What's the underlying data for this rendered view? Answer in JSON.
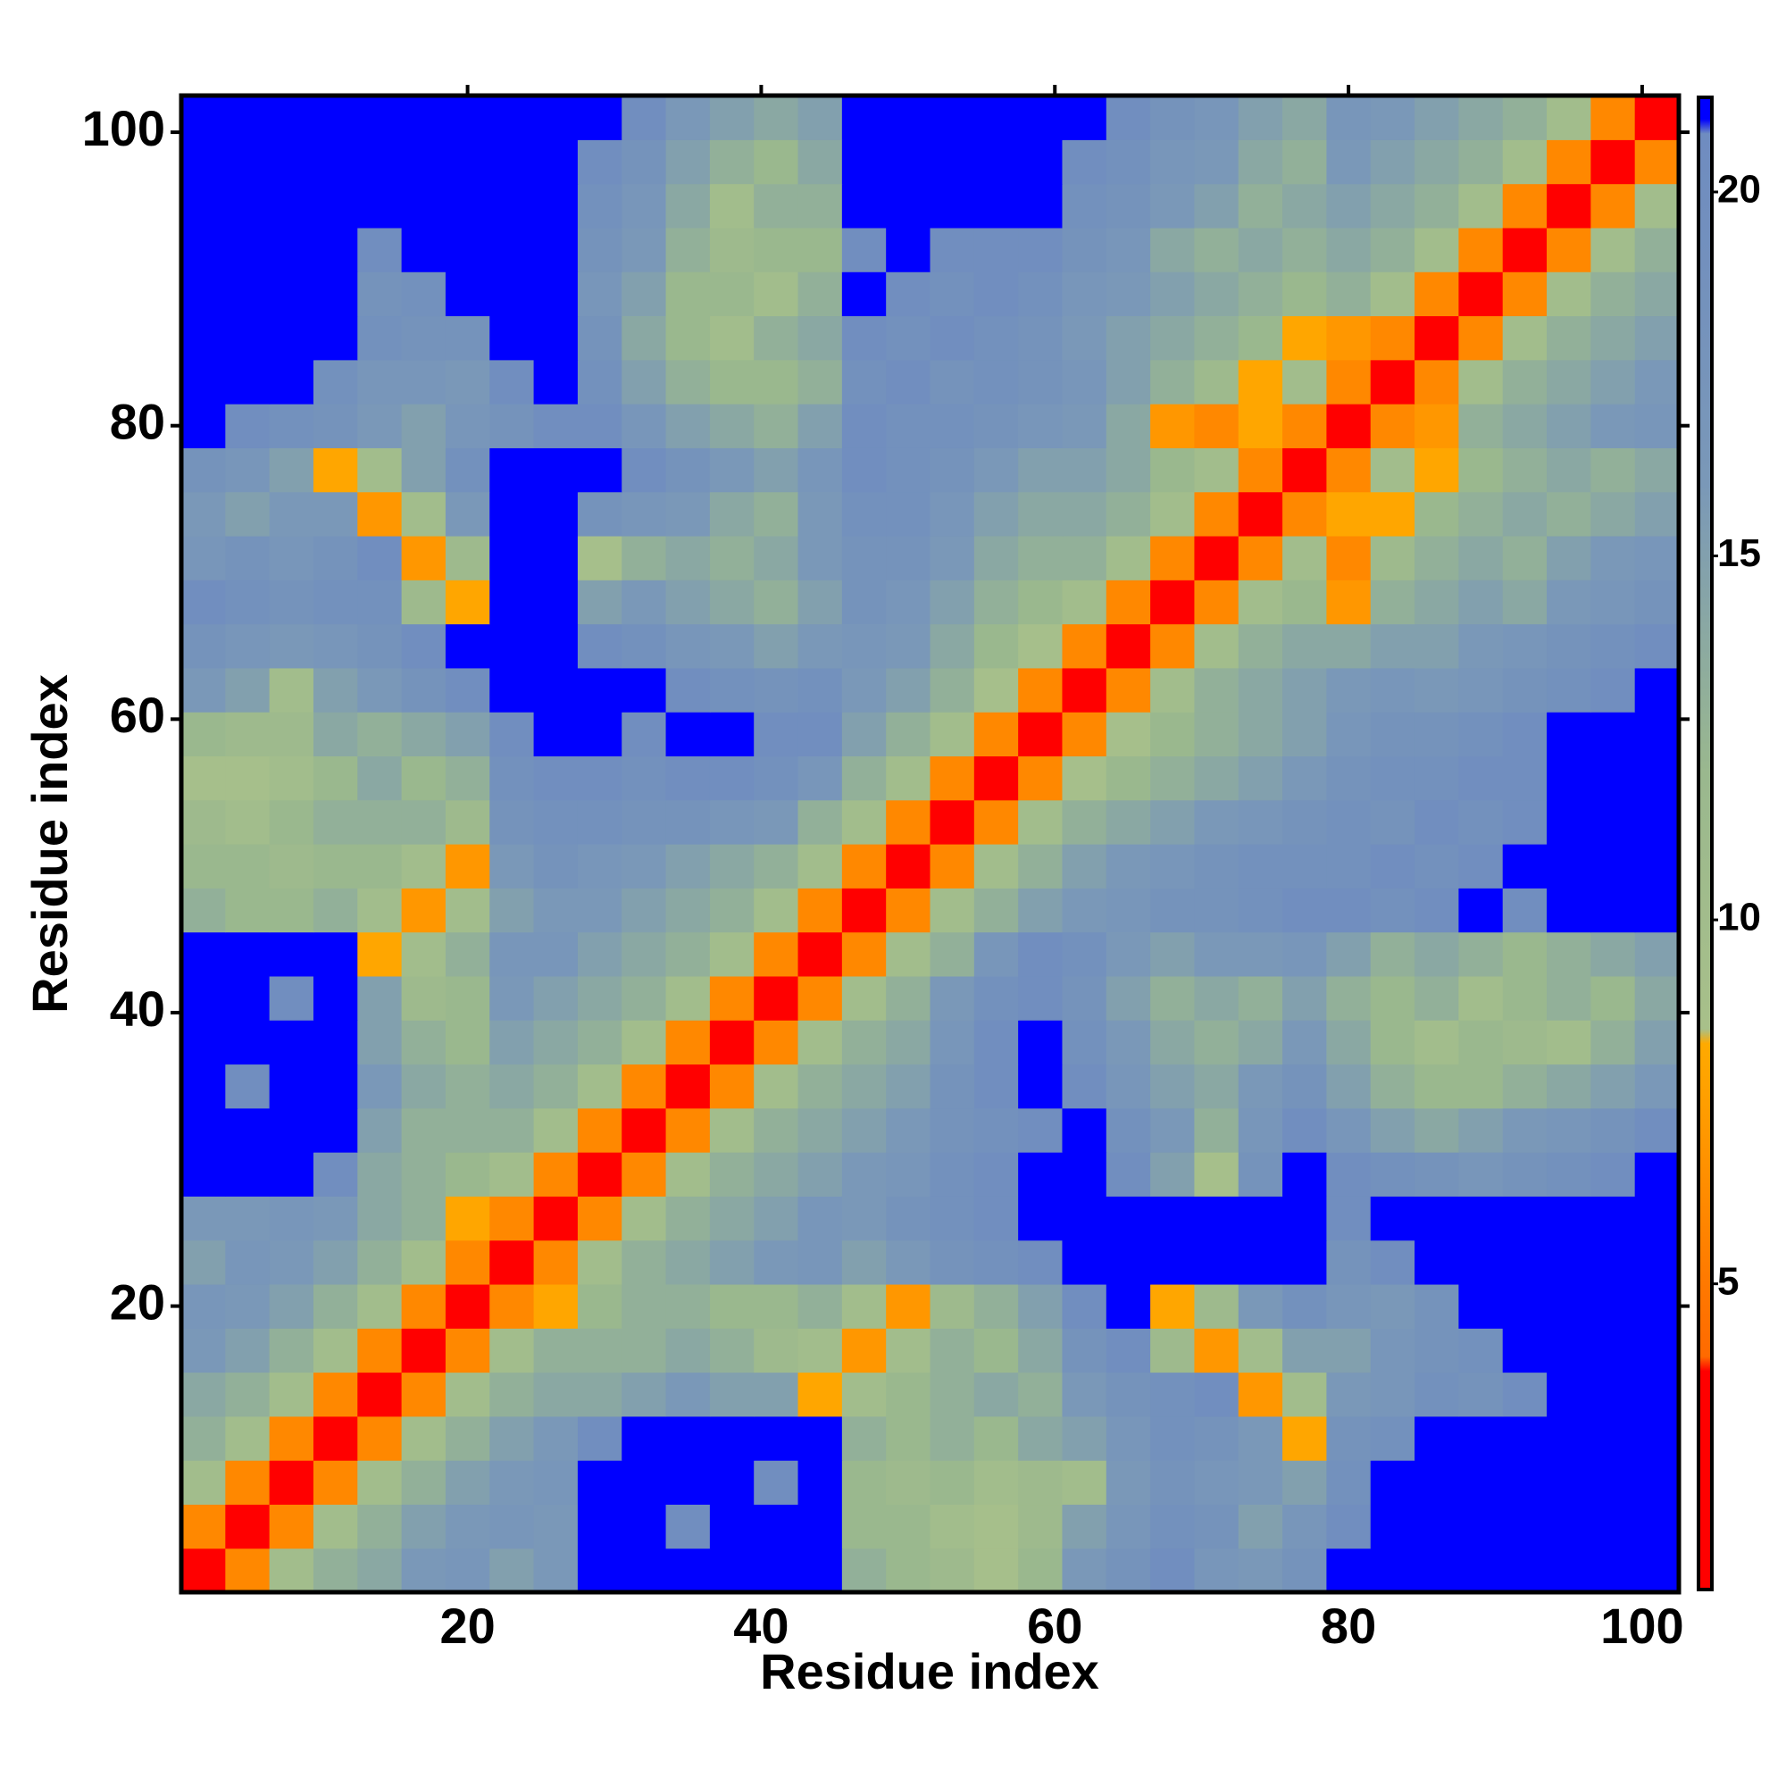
{
  "chart_data": {
    "type": "heatmap",
    "x_label": "Residue index",
    "y_label": "Residue index",
    "x": [
      2,
      5,
      8,
      11,
      14,
      17,
      20,
      23,
      26,
      29,
      32,
      35,
      38,
      41,
      44,
      47,
      50,
      53,
      56,
      59,
      62,
      65,
      68,
      71,
      74,
      77,
      80,
      83,
      86,
      89,
      92,
      95,
      98,
      101
    ],
    "y": [
      2,
      5,
      8,
      11,
      14,
      17,
      20,
      23,
      26,
      29,
      32,
      35,
      38,
      41,
      44,
      47,
      50,
      53,
      56,
      59,
      62,
      65,
      68,
      71,
      74,
      77,
      80,
      83,
      86,
      89,
      92,
      95,
      98,
      101
    ],
    "xlim": [
      0.5,
      102.5
    ],
    "ylim": [
      0.5,
      102.5
    ],
    "xticks": [
      20,
      40,
      60,
      80,
      100
    ],
    "yticks": [
      20,
      40,
      60,
      80,
      100
    ],
    "zlim": [
      0.8,
      21.3
    ],
    "zticks": [
      5,
      10,
      15,
      20
    ],
    "colorscale": [
      [
        0.8,
        "#ff0000"
      ],
      [
        3.8,
        "#ff0000"
      ],
      [
        4.0,
        "#ff6a00"
      ],
      [
        8.3,
        "#ffaa00"
      ],
      [
        8.5,
        "#a8c08a"
      ],
      [
        12,
        "#9ab88e"
      ],
      [
        16,
        "#7a98b8"
      ],
      [
        20.8,
        "#6f8cc0"
      ],
      [
        21,
        "#0000ff"
      ],
      [
        21.3,
        "#0000ff"
      ]
    ],
    "z": [
      [
        2,
        6,
        10,
        13,
        14,
        16,
        17,
        15,
        16,
        21,
        21,
        21,
        21,
        21,
        21,
        13,
        12,
        11,
        9,
        12,
        16,
        18,
        20,
        17,
        16,
        18,
        21,
        21,
        21,
        21,
        21,
        21,
        21,
        21
      ],
      [
        6,
        2,
        6,
        10,
        13,
        15,
        16,
        17,
        16,
        21,
        21,
        20,
        21,
        21,
        21,
        12,
        12,
        10,
        9,
        11,
        15,
        17,
        19,
        18,
        15,
        17,
        20,
        21,
        21,
        21,
        21,
        21,
        21,
        21
      ],
      [
        10,
        6,
        2,
        6,
        10,
        13,
        15,
        16,
        17,
        21,
        21,
        21,
        21,
        20,
        21,
        12,
        11,
        12,
        10,
        11,
        10,
        16,
        18,
        17,
        16,
        15,
        19,
        21,
        21,
        21,
        21,
        21,
        21,
        21
      ],
      [
        13,
        10,
        6,
        2,
        6,
        10,
        13,
        15,
        16,
        20,
        21,
        21,
        21,
        21,
        21,
        13,
        12,
        13,
        12,
        14,
        15,
        17,
        19,
        18,
        16,
        8,
        18,
        19,
        21,
        21,
        21,
        21,
        21,
        21
      ],
      [
        14,
        13,
        10,
        6,
        2,
        6,
        10,
        13,
        14,
        14,
        15,
        16,
        15,
        15,
        8,
        10,
        12,
        13,
        14,
        13,
        16,
        18,
        19,
        20,
        7,
        10,
        16,
        17,
        19,
        18,
        20,
        21,
        21,
        21
      ],
      [
        16,
        15,
        13,
        10,
        6,
        2,
        6,
        10,
        13,
        13,
        13,
        14,
        13,
        11,
        10,
        7,
        10,
        13,
        12,
        14,
        18,
        20,
        11,
        7,
        10,
        15,
        15,
        17,
        18,
        19,
        21,
        21,
        21,
        21
      ],
      [
        17,
        16,
        15,
        13,
        10,
        6,
        2,
        6,
        8,
        12,
        13,
        13,
        12,
        12,
        13,
        10,
        7,
        11,
        13,
        15,
        20,
        21,
        8,
        11,
        16,
        19,
        17,
        16,
        18,
        21,
        21,
        21,
        21,
        21
      ],
      [
        15,
        17,
        16,
        15,
        13,
        10,
        6,
        2,
        6,
        10,
        13,
        14,
        15,
        16,
        17,
        15,
        16,
        18,
        19,
        20,
        21,
        21,
        21,
        21,
        21,
        21,
        18,
        20,
        21,
        21,
        21,
        21,
        21,
        21
      ],
      [
        16,
        16,
        17,
        16,
        14,
        13,
        8,
        6,
        2,
        6,
        10,
        13,
        14,
        15,
        17,
        16,
        18,
        19,
        20,
        21,
        21,
        21,
        21,
        21,
        21,
        21,
        20,
        21,
        21,
        21,
        21,
        21,
        21,
        21
      ],
      [
        21,
        21,
        21,
        20,
        14,
        13,
        12,
        10,
        6,
        2,
        6,
        10,
        13,
        14,
        15,
        16,
        17,
        19,
        20,
        21,
        21,
        20,
        15,
        9,
        18,
        21,
        20,
        19,
        18,
        17,
        18,
        19,
        20,
        21
      ],
      [
        21,
        21,
        21,
        21,
        15,
        13,
        13,
        13,
        10,
        6,
        2,
        6,
        10,
        13,
        14,
        15,
        16,
        18,
        19,
        20,
        21,
        19,
        16,
        13,
        17,
        20,
        17,
        15,
        14,
        15,
        16,
        17,
        18,
        20
      ],
      [
        21,
        20,
        21,
        21,
        16,
        14,
        13,
        14,
        13,
        10,
        6,
        2,
        6,
        10,
        13,
        14,
        15,
        18,
        20,
        21,
        20,
        17,
        15,
        14,
        16,
        18,
        15,
        13,
        12,
        12,
        13,
        14,
        15,
        16
      ],
      [
        21,
        21,
        21,
        21,
        15,
        13,
        12,
        15,
        14,
        13,
        10,
        6,
        2,
        6,
        10,
        13,
        14,
        17,
        20,
        21,
        19,
        16,
        14,
        13,
        14,
        16,
        14,
        12,
        10,
        12,
        11,
        10,
        13,
        15
      ],
      [
        21,
        21,
        20,
        21,
        15,
        11,
        12,
        16,
        15,
        14,
        13,
        10,
        6,
        2,
        6,
        10,
        13,
        16,
        19,
        20,
        18,
        15,
        13,
        14,
        13,
        15,
        13,
        12,
        13,
        10,
        12,
        13,
        12,
        14
      ],
      [
        21,
        21,
        21,
        21,
        8,
        10,
        13,
        17,
        17,
        15,
        14,
        13,
        10,
        6,
        2,
        6,
        10,
        13,
        17,
        20,
        19,
        16,
        15,
        16,
        16,
        17,
        15,
        13,
        14,
        13,
        12,
        13,
        14,
        15
      ],
      [
        13,
        12,
        12,
        13,
        10,
        7,
        10,
        15,
        16,
        16,
        15,
        14,
        13,
        10,
        6,
        2,
        6,
        10,
        13,
        15,
        16,
        17,
        18,
        18,
        19,
        20,
        20,
        19,
        20,
        21,
        20,
        21,
        21,
        21
      ],
      [
        12,
        12,
        11,
        12,
        12,
        10,
        7,
        16,
        18,
        17,
        16,
        15,
        14,
        13,
        10,
        6,
        2,
        6,
        10,
        13,
        15,
        16,
        17,
        18,
        19,
        19,
        19,
        20,
        19,
        20,
        21,
        21,
        21,
        21
      ],
      [
        11,
        10,
        12,
        13,
        13,
        13,
        11,
        18,
        19,
        19,
        18,
        18,
        17,
        16,
        13,
        10,
        6,
        2,
        6,
        10,
        13,
        14,
        15,
        16,
        17,
        18,
        19,
        18,
        20,
        19,
        20,
        21,
        21,
        21
      ],
      [
        9,
        9,
        10,
        12,
        14,
        12,
        13,
        19,
        20,
        20,
        19,
        20,
        20,
        19,
        17,
        13,
        10,
        6,
        2,
        6,
        9,
        12,
        13,
        14,
        15,
        16,
        18,
        19,
        19,
        20,
        20,
        21,
        21,
        21
      ],
      [
        12,
        11,
        11,
        14,
        13,
        14,
        15,
        20,
        21,
        21,
        20,
        21,
        21,
        20,
        20,
        15,
        13,
        10,
        6,
        2,
        6,
        9,
        12,
        13,
        14,
        15,
        17,
        18,
        18,
        19,
        20,
        21,
        21,
        21
      ],
      [
        16,
        15,
        10,
        15,
        16,
        18,
        20,
        21,
        21,
        21,
        21,
        20,
        19,
        18,
        19,
        16,
        15,
        13,
        9,
        6,
        2,
        6,
        10,
        13,
        14,
        15,
        16,
        17,
        16,
        17,
        18,
        19,
        20,
        21
      ],
      [
        18,
        17,
        16,
        17,
        18,
        20,
        21,
        21,
        21,
        20,
        19,
        17,
        16,
        15,
        16,
        17,
        16,
        14,
        12,
        9,
        6,
        2,
        6,
        10,
        13,
        14,
        14,
        15,
        15,
        16,
        17,
        18,
        19,
        20
      ],
      [
        20,
        19,
        18,
        19,
        19,
        11,
        8,
        21,
        21,
        15,
        16,
        15,
        14,
        13,
        15,
        18,
        17,
        15,
        13,
        12,
        10,
        6,
        2,
        6,
        10,
        12,
        7,
        13,
        14,
        15,
        14,
        16,
        17,
        18
      ],
      [
        17,
        18,
        17,
        18,
        20,
        7,
        11,
        21,
        21,
        9,
        13,
        14,
        13,
        14,
        16,
        18,
        18,
        16,
        14,
        13,
        13,
        10,
        6,
        2,
        6,
        10,
        6,
        11,
        13,
        14,
        13,
        15,
        16,
        17
      ],
      [
        16,
        15,
        16,
        16,
        7,
        10,
        16,
        21,
        21,
        18,
        17,
        16,
        14,
        13,
        16,
        19,
        19,
        17,
        15,
        14,
        14,
        13,
        10,
        6,
        2,
        6,
        8,
        8,
        12,
        13,
        14,
        13,
        14,
        15
      ],
      [
        18,
        17,
        15,
        8,
        10,
        15,
        19,
        21,
        21,
        21,
        20,
        18,
        16,
        15,
        17,
        20,
        19,
        18,
        16,
        15,
        15,
        14,
        12,
        10,
        6,
        2,
        6,
        10,
        8,
        12,
        13,
        14,
        13,
        14
      ],
      [
        21,
        20,
        19,
        18,
        16,
        15,
        17,
        18,
        20,
        20,
        17,
        15,
        14,
        13,
        15,
        20,
        19,
        19,
        18,
        17,
        16,
        14,
        7,
        6,
        8,
        6,
        2,
        6,
        7,
        13,
        14,
        15,
        16,
        17
      ],
      [
        21,
        21,
        21,
        19,
        17,
        17,
        16,
        20,
        21,
        19,
        15,
        13,
        12,
        12,
        13,
        19,
        20,
        18,
        19,
        18,
        17,
        15,
        13,
        11,
        8,
        10,
        6,
        2,
        6,
        10,
        13,
        14,
        15,
        16
      ],
      [
        21,
        21,
        21,
        21,
        19,
        18,
        18,
        21,
        21,
        18,
        14,
        12,
        10,
        13,
        14,
        20,
        19,
        20,
        19,
        18,
        16,
        15,
        14,
        13,
        12,
        8,
        7,
        6,
        2,
        6,
        10,
        13,
        14,
        15
      ],
      [
        21,
        21,
        21,
        21,
        18,
        19,
        21,
        21,
        21,
        17,
        15,
        12,
        12,
        10,
        13,
        21,
        20,
        19,
        20,
        19,
        17,
        16,
        15,
        14,
        13,
        12,
        13,
        10,
        6,
        2,
        6,
        10,
        13,
        14
      ],
      [
        21,
        21,
        21,
        21,
        20,
        21,
        21,
        21,
        21,
        18,
        16,
        13,
        11,
        12,
        12,
        20,
        21,
        20,
        20,
        20,
        18,
        17,
        14,
        13,
        14,
        13,
        14,
        13,
        10,
        6,
        2,
        6,
        10,
        13
      ],
      [
        21,
        21,
        21,
        21,
        21,
        21,
        21,
        21,
        21,
        19,
        17,
        14,
        10,
        13,
        13,
        21,
        21,
        21,
        21,
        21,
        19,
        18,
        16,
        15,
        13,
        14,
        15,
        14,
        13,
        10,
        6,
        2,
        6,
        10
      ],
      [
        21,
        21,
        21,
        21,
        21,
        21,
        21,
        21,
        21,
        20,
        18,
        15,
        13,
        12,
        14,
        21,
        21,
        21,
        21,
        21,
        20,
        19,
        17,
        16,
        14,
        13,
        16,
        15,
        14,
        13,
        10,
        6,
        2,
        6
      ],
      [
        21,
        21,
        21,
        21,
        21,
        21,
        21,
        21,
        21,
        21,
        20,
        16,
        15,
        14,
        15,
        21,
        21,
        21,
        21,
        21,
        21,
        20,
        18,
        17,
        15,
        14,
        17,
        16,
        15,
        14,
        13,
        10,
        6,
        2
      ]
    ]
  }
}
